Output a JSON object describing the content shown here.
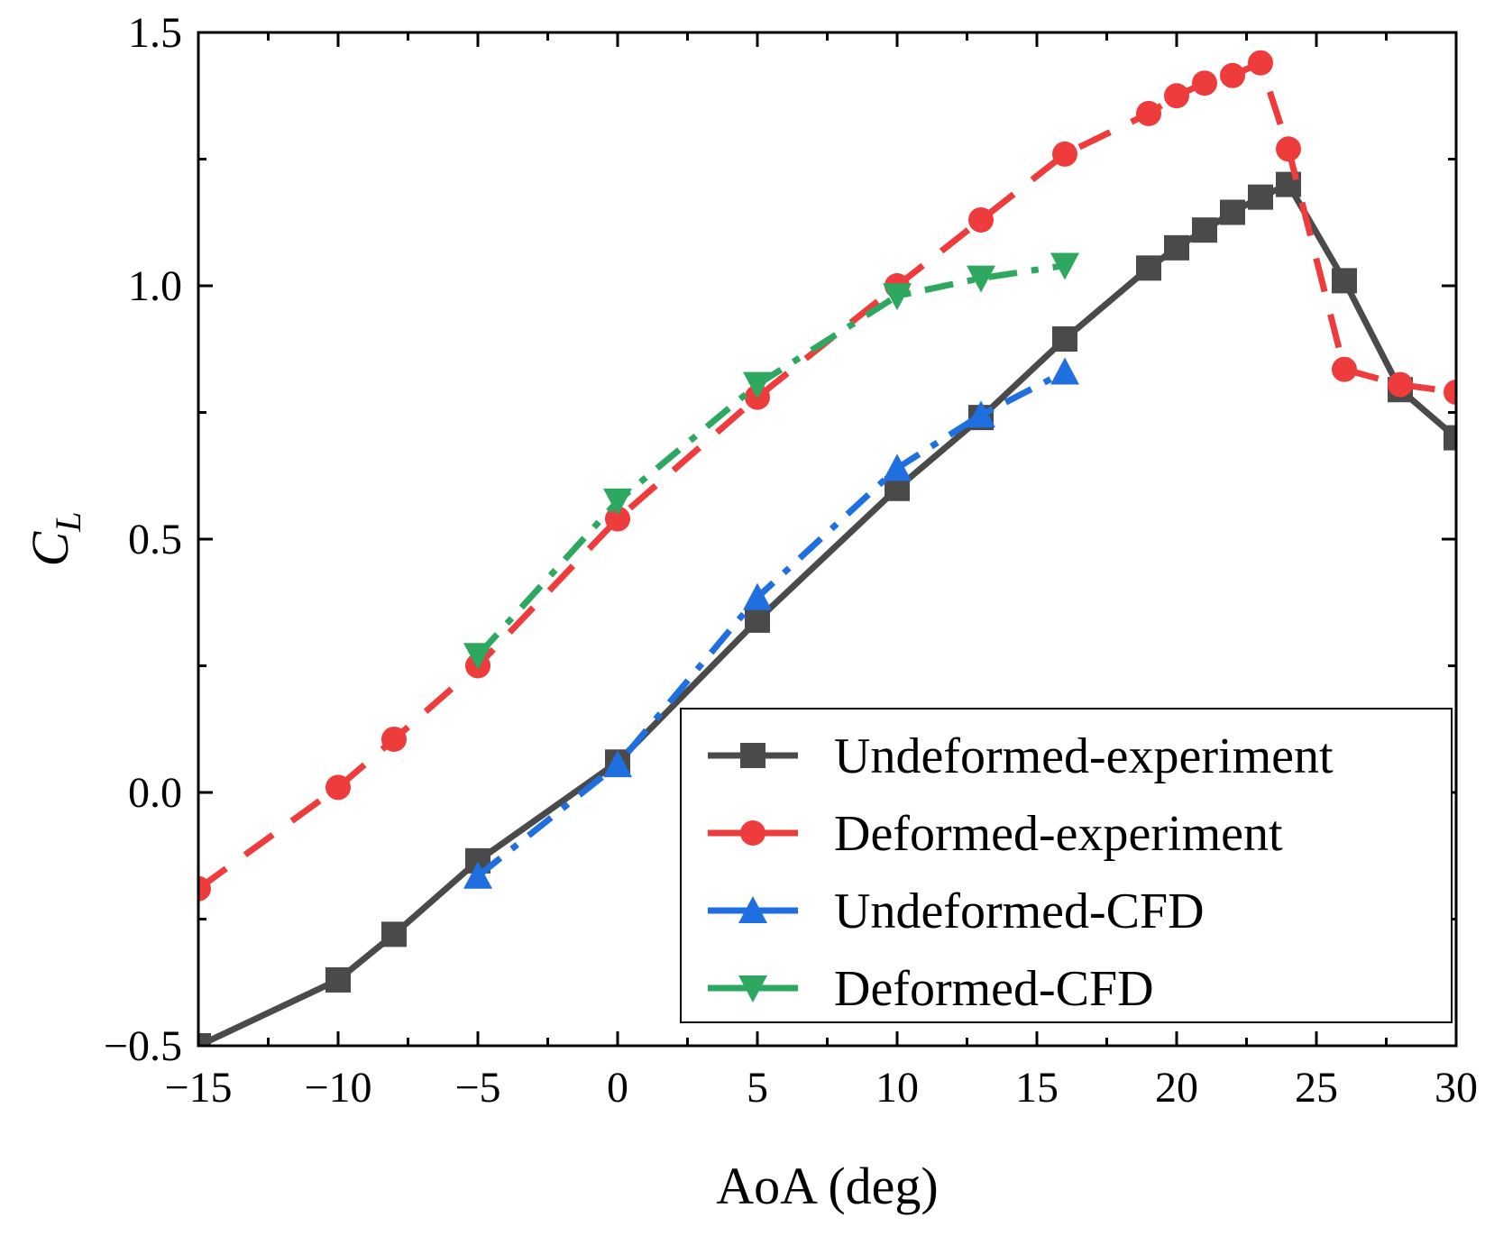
{
  "chart_data": {
    "type": "line",
    "xlabel": "AoA (deg)",
    "ylabel_main": "C",
    "ylabel_sub": "L",
    "xlim": [
      -15,
      30
    ],
    "ylim": [
      -0.5,
      1.5
    ],
    "xticks": [
      -15,
      -10,
      -5,
      0,
      5,
      10,
      15,
      20,
      25,
      30
    ],
    "xtick_labels": [
      "−15",
      "−10",
      "−5",
      "0",
      "5",
      "10",
      "15",
      "20",
      "25",
      "30"
    ],
    "yticks": [
      -0.5,
      0.0,
      0.5,
      1.0,
      1.5
    ],
    "ytick_labels": [
      "−0.5",
      "0.0",
      "0.5",
      "1.0",
      "1.5"
    ],
    "legend_position": "bottom-right",
    "series": [
      {
        "name": "Undeformed-experiment",
        "color": "#4a4a4a",
        "marker": "square",
        "line_style": "solid",
        "x": [
          -15,
          -10,
          -8,
          -5,
          0,
          5,
          10,
          13,
          16,
          19,
          20,
          21,
          22,
          23,
          24,
          26,
          28,
          30
        ],
        "y": [
          -0.5,
          -0.37,
          -0.28,
          -0.135,
          0.06,
          0.34,
          0.6,
          0.74,
          0.895,
          1.035,
          1.075,
          1.11,
          1.145,
          1.175,
          1.2,
          1.01,
          0.795,
          0.7
        ]
      },
      {
        "name": "Deformed-experiment",
        "color": "#ee3b3b",
        "marker": "circle",
        "line_style": "dash",
        "x": [
          -15,
          -10,
          -8,
          -5,
          0,
          5,
          10,
          13,
          16,
          19,
          20,
          21,
          22,
          23,
          24,
          26,
          28,
          30
        ],
        "y": [
          -0.19,
          0.01,
          0.105,
          0.25,
          0.54,
          0.78,
          1.0,
          1.13,
          1.26,
          1.34,
          1.375,
          1.4,
          1.415,
          1.44,
          1.27,
          0.835,
          0.805,
          0.79
        ]
      },
      {
        "name": "Undeformed-CFD",
        "color": "#1f6fe0",
        "marker": "triangle-up",
        "line_style": "dashdot",
        "x": [
          -5,
          0,
          5,
          10,
          13,
          16
        ],
        "y": [
          -0.165,
          0.055,
          0.385,
          0.64,
          0.745,
          0.83
        ]
      },
      {
        "name": "Deformed-CFD",
        "color": "#2ea860",
        "marker": "triangle-down",
        "line_style": "dashdot",
        "x": [
          -5,
          0,
          5,
          10,
          13,
          16
        ],
        "y": [
          0.27,
          0.575,
          0.805,
          0.98,
          1.015,
          1.04
        ]
      }
    ]
  }
}
